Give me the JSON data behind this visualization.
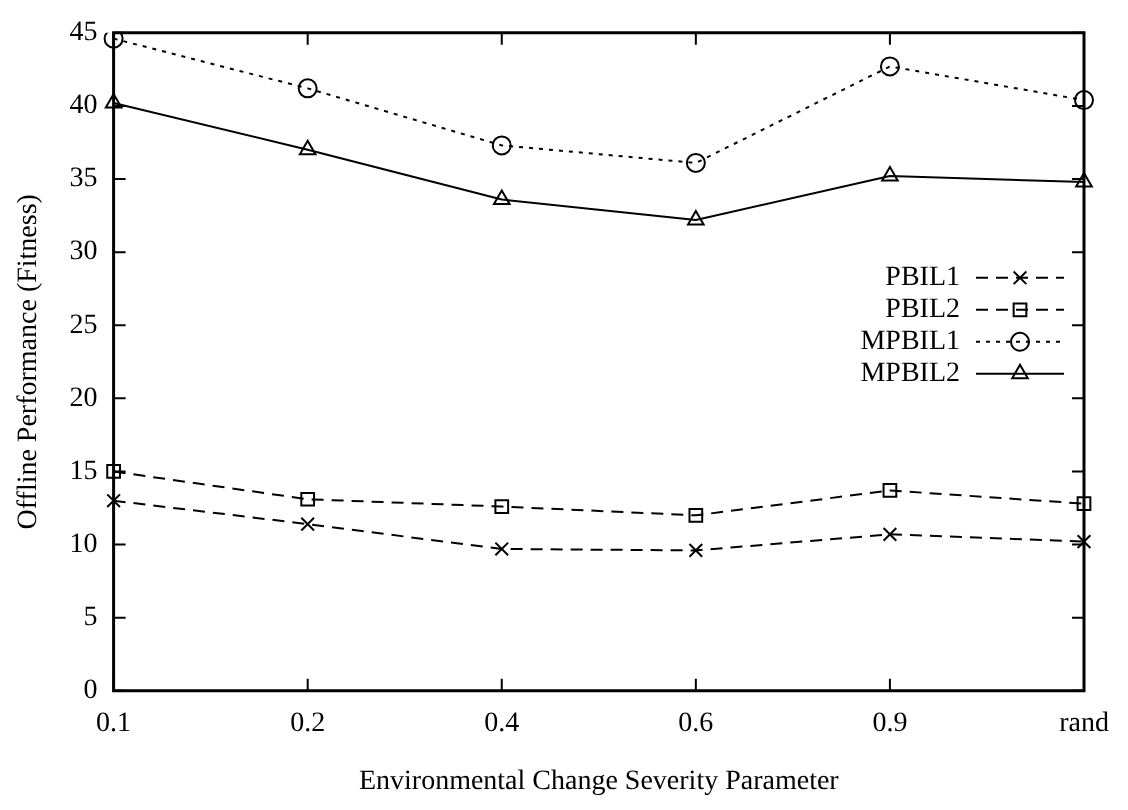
{
  "chart_data": {
    "type": "line",
    "xlabel": "Environmental Change Severity Parameter",
    "ylabel": "Offline Performance (Fitness)",
    "categories": [
      "0.1",
      "0.2",
      "0.4",
      "0.6",
      "0.9",
      "rand"
    ],
    "ylim": [
      0,
      45
    ],
    "yticks": [
      0,
      5,
      10,
      15,
      20,
      25,
      30,
      35,
      40,
      45
    ],
    "grid": false,
    "legend": "right",
    "series": [
      {
        "name": "PBIL1",
        "color": "#000000",
        "marker": "cross",
        "line_style": "dashed",
        "values": [
          13.0,
          11.4,
          9.7,
          9.6,
          10.7,
          10.2
        ]
      },
      {
        "name": "PBIL2",
        "color": "#000000",
        "marker": "square",
        "line_style": "dashed",
        "values": [
          15.0,
          13.1,
          12.6,
          12.0,
          13.7,
          12.8
        ]
      },
      {
        "name": "MPBIL1",
        "color": "#000000",
        "marker": "circle",
        "line_style": "dotted",
        "values": [
          44.6,
          41.2,
          37.3,
          36.1,
          42.7,
          40.4
        ]
      },
      {
        "name": "MPBIL2",
        "color": "#000000",
        "marker": "triangle",
        "line_style": "solid",
        "values": [
          40.2,
          37.0,
          33.6,
          32.2,
          35.2,
          34.8
        ]
      }
    ]
  }
}
